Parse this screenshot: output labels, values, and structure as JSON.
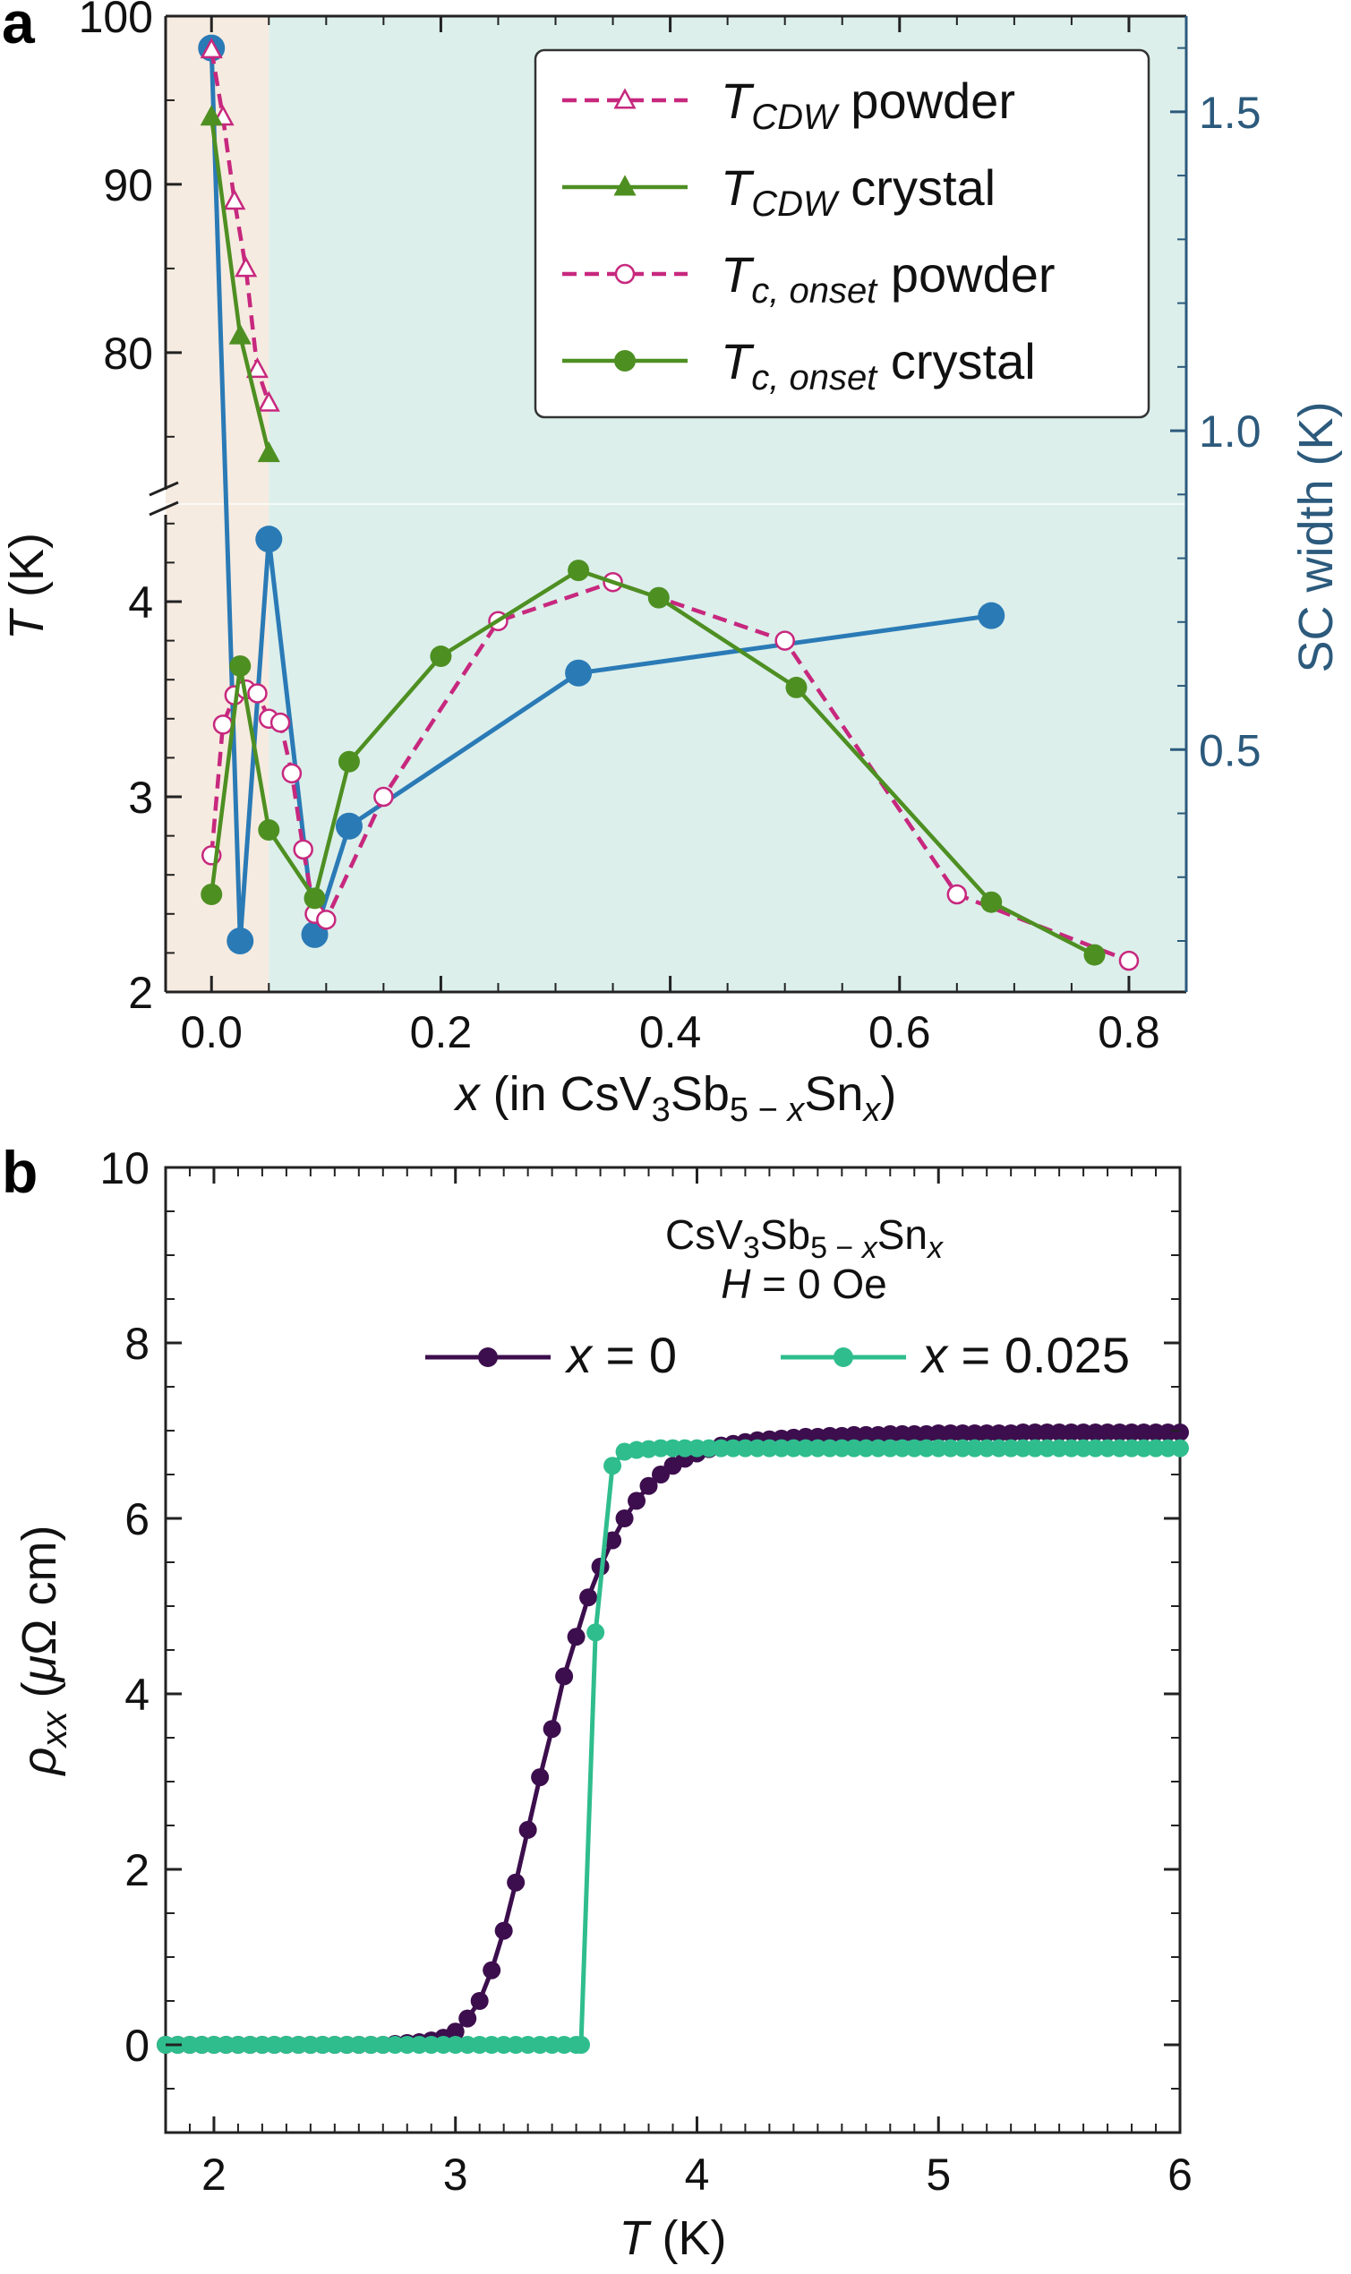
{
  "chart_data": [
    {
      "panel": "a",
      "type": "line",
      "xlabel": "x (in CsV3Sb5−xSnx)",
      "ylabel": "T (K)",
      "y2label": "SC width (K)",
      "xlim": [
        -0.04,
        0.85
      ],
      "x_ticks": [
        "0.0",
        "0.2",
        "0.4",
        "0.6",
        "0.8"
      ],
      "y_lower_lim": [
        2,
        4.5
      ],
      "y_lower_ticks": [
        "2",
        "3",
        "4"
      ],
      "y_upper_lim": [
        71,
        100
      ],
      "y_upper_ticks": [
        "80",
        "90",
        "100"
      ],
      "y_break": true,
      "y2lim": [
        0.12,
        1.65
      ],
      "y2_ticks": [
        "0.5",
        "1.0",
        "1.5"
      ],
      "shaded_regions": [
        {
          "x_from": -0.04,
          "x_to": 0.05,
          "color": "#f6ebe0"
        },
        {
          "x_from": 0.05,
          "x_to": 0.85,
          "color": "#dcefeb"
        }
      ],
      "legend": {
        "placement": "top-right"
      },
      "series": [
        {
          "name": "TCDW powder",
          "legend_main": "T",
          "legend_sub": "CDW",
          "legend_rest": " powder",
          "axis": "upper",
          "color": "#c7287e",
          "dash": true,
          "marker": "triangle-open",
          "x": [
            0.0,
            0.01,
            0.02,
            0.03,
            0.04,
            0.05
          ],
          "y": [
            98,
            94,
            89,
            85,
            79,
            77
          ]
        },
        {
          "name": "TCDW crystal",
          "legend_main": "T",
          "legend_sub": "CDW",
          "legend_rest": " crystal",
          "axis": "upper",
          "color": "#4e8f22",
          "dash": false,
          "marker": "triangle-filled",
          "x": [
            0.0,
            0.025,
            0.05
          ],
          "y": [
            94,
            81,
            74
          ]
        },
        {
          "name": "Tc,onset powder",
          "legend_main": "T",
          "legend_sub": "c, onset",
          "legend_rest": " powder",
          "axis": "lower",
          "color": "#c7287e",
          "dash": true,
          "marker": "circle-open",
          "x": [
            0.0,
            0.01,
            0.02,
            0.03,
            0.04,
            0.05,
            0.06,
            0.07,
            0.08,
            0.09,
            0.1,
            0.15,
            0.25,
            0.35,
            0.5,
            0.65,
            0.8
          ],
          "y": [
            2.7,
            3.37,
            3.52,
            3.55,
            3.53,
            3.4,
            3.38,
            3.12,
            2.73,
            2.4,
            2.37,
            3.0,
            3.9,
            4.1,
            3.8,
            2.5,
            2.16
          ]
        },
        {
          "name": "Tc,onset crystal",
          "legend_main": "T",
          "legend_sub": "c, onset",
          "legend_rest": " crystal",
          "axis": "lower",
          "color": "#4e8f22",
          "dash": false,
          "marker": "circle-filled",
          "x": [
            0.0,
            0.025,
            0.05,
            0.09,
            0.12,
            0.2,
            0.32,
            0.39,
            0.51,
            0.68,
            0.77
          ],
          "y": [
            2.5,
            3.67,
            2.83,
            2.48,
            3.18,
            3.72,
            4.16,
            4.02,
            3.56,
            2.46,
            2.19
          ]
        },
        {
          "name": "SC width",
          "axis": "right",
          "color": "#2a7ab6",
          "dash": false,
          "marker": "circle-filled-large",
          "x": [
            0.0,
            0.025,
            0.05,
            0.09,
            0.12,
            0.32,
            0.68
          ],
          "y": [
            1.6,
            0.2,
            0.83,
            0.21,
            0.38,
            0.62,
            0.71
          ]
        }
      ]
    },
    {
      "panel": "b",
      "type": "line",
      "xlabel": "T (K)",
      "ylabel": "ρxx (μΩ cm)",
      "xlim": [
        1.8,
        6.0
      ],
      "ylim": [
        -1.0,
        10.0
      ],
      "x_ticks": [
        "2",
        "3",
        "4",
        "5",
        "6"
      ],
      "y_ticks": [
        "0",
        "2",
        "4",
        "6",
        "8",
        "10"
      ],
      "legend": {
        "placement": "top-center",
        "columns": 2
      },
      "annotation_line1": "CsV3Sb5−xSnx",
      "annotation_line2": "H = 0 Oe",
      "series": [
        {
          "name": "x = 0",
          "color": "#3c0e4d",
          "marker": "circle-filled",
          "x": [
            1.8,
            1.85,
            1.9,
            1.95,
            2.0,
            2.05,
            2.1,
            2.15,
            2.2,
            2.25,
            2.3,
            2.35,
            2.4,
            2.45,
            2.5,
            2.55,
            2.6,
            2.65,
            2.7,
            2.75,
            2.8,
            2.85,
            2.9,
            2.95,
            3.0,
            3.05,
            3.1,
            3.15,
            3.2,
            3.25,
            3.3,
            3.35,
            3.4,
            3.45,
            3.5,
            3.55,
            3.6,
            3.65,
            3.7,
            3.75,
            3.8,
            3.85,
            3.9,
            3.95,
            4.0,
            4.05,
            4.1,
            4.15,
            4.2,
            4.25,
            4.3,
            4.35,
            4.4,
            4.45,
            4.5,
            4.55,
            4.6,
            4.65,
            4.7,
            4.75,
            4.8,
            4.85,
            4.9,
            4.95,
            5.0,
            5.05,
            5.1,
            5.15,
            5.2,
            5.25,
            5.3,
            5.35,
            5.4,
            5.45,
            5.5,
            5.55,
            5.6,
            5.65,
            5.7,
            5.75,
            5.8,
            5.85,
            5.9,
            5.95,
            6.0
          ],
          "y": [
            0,
            0,
            0,
            0,
            0,
            0,
            0,
            0,
            0,
            0,
            0,
            0,
            0,
            0,
            0,
            0,
            0,
            0,
            0,
            0.01,
            0.02,
            0.03,
            0.05,
            0.08,
            0.15,
            0.3,
            0.5,
            0.85,
            1.3,
            1.85,
            2.45,
            3.05,
            3.6,
            4.2,
            4.65,
            5.1,
            5.45,
            5.75,
            6.0,
            6.2,
            6.37,
            6.5,
            6.6,
            6.68,
            6.74,
            6.79,
            6.83,
            6.85,
            6.87,
            6.89,
            6.9,
            6.91,
            6.92,
            6.93,
            6.93,
            6.94,
            6.94,
            6.95,
            6.95,
            6.95,
            6.96,
            6.96,
            6.96,
            6.96,
            6.97,
            6.97,
            6.97,
            6.97,
            6.97,
            6.97,
            6.97,
            6.98,
            6.98,
            6.98,
            6.98,
            6.98,
            6.98,
            6.98,
            6.98,
            6.98,
            6.98,
            6.98,
            6.98,
            6.98,
            6.98
          ]
        },
        {
          "name": "x = 0.025",
          "color": "#2fbd8e",
          "marker": "circle-filled",
          "x": [
            1.8,
            1.85,
            1.9,
            1.95,
            2.0,
            2.05,
            2.1,
            2.15,
            2.2,
            2.25,
            2.3,
            2.35,
            2.4,
            2.45,
            2.5,
            2.55,
            2.6,
            2.65,
            2.7,
            2.75,
            2.8,
            2.85,
            2.9,
            2.95,
            3.0,
            3.05,
            3.1,
            3.15,
            3.2,
            3.25,
            3.3,
            3.35,
            3.4,
            3.45,
            3.5,
            3.52,
            3.58,
            3.65,
            3.7,
            3.75,
            3.8,
            3.85,
            3.9,
            3.95,
            4.0,
            4.05,
            4.1,
            4.15,
            4.2,
            4.25,
            4.3,
            4.35,
            4.4,
            4.45,
            4.5,
            4.55,
            4.6,
            4.65,
            4.7,
            4.75,
            4.8,
            4.85,
            4.9,
            4.95,
            5.0,
            5.05,
            5.1,
            5.15,
            5.2,
            5.25,
            5.3,
            5.35,
            5.4,
            5.45,
            5.5,
            5.55,
            5.6,
            5.65,
            5.7,
            5.75,
            5.8,
            5.85,
            5.9,
            5.95,
            6.0
          ],
          "y": [
            0,
            0,
            0,
            0,
            0,
            0,
            0,
            0,
            0,
            0,
            0,
            0,
            0,
            0,
            0,
            0,
            0,
            0,
            0,
            0,
            0,
            0,
            0,
            0,
            0,
            0,
            0,
            0,
            0,
            0,
            0,
            0,
            0,
            0,
            0,
            0.0,
            4.7,
            6.6,
            6.76,
            6.78,
            6.79,
            6.8,
            6.8,
            6.8,
            6.8,
            6.8,
            6.8,
            6.8,
            6.8,
            6.8,
            6.8,
            6.8,
            6.8,
            6.8,
            6.8,
            6.8,
            6.8,
            6.8,
            6.8,
            6.8,
            6.8,
            6.8,
            6.8,
            6.8,
            6.8,
            6.8,
            6.8,
            6.8,
            6.8,
            6.8,
            6.8,
            6.8,
            6.8,
            6.8,
            6.8,
            6.8,
            6.8,
            6.8,
            6.8,
            6.8,
            6.8,
            6.8,
            6.8,
            6.8,
            6.8
          ]
        }
      ]
    }
  ]
}
